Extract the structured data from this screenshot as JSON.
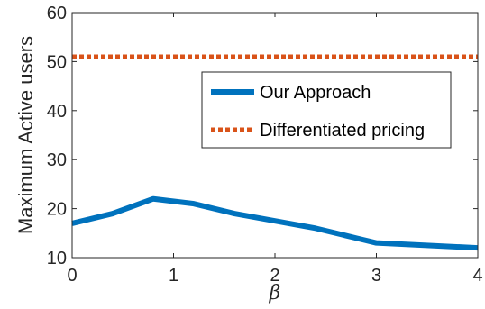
{
  "chart_data": {
    "type": "line",
    "title": "",
    "xlabel": "β",
    "ylabel": "Maximum Active users",
    "xlim": [
      0,
      4
    ],
    "ylim": [
      10,
      60
    ],
    "xticks": [
      0,
      1,
      2,
      3,
      4
    ],
    "yticks": [
      10,
      20,
      30,
      40,
      50,
      60
    ],
    "grid": false,
    "legend": "center-right",
    "series": [
      {
        "name": "Our Approach",
        "color": "#0072BD",
        "style": "solid",
        "x": [
          0,
          0.4,
          0.8,
          1.2,
          1.6,
          2.0,
          2.4,
          2.8,
          3.0,
          4.0
        ],
        "y": [
          17,
          19,
          22,
          21,
          19,
          17.5,
          16,
          14,
          13,
          12
        ]
      },
      {
        "name": "Differentiated pricing",
        "color": "#D95319",
        "style": "dotted",
        "x": [
          0,
          4
        ],
        "y": [
          51,
          51
        ]
      }
    ]
  }
}
